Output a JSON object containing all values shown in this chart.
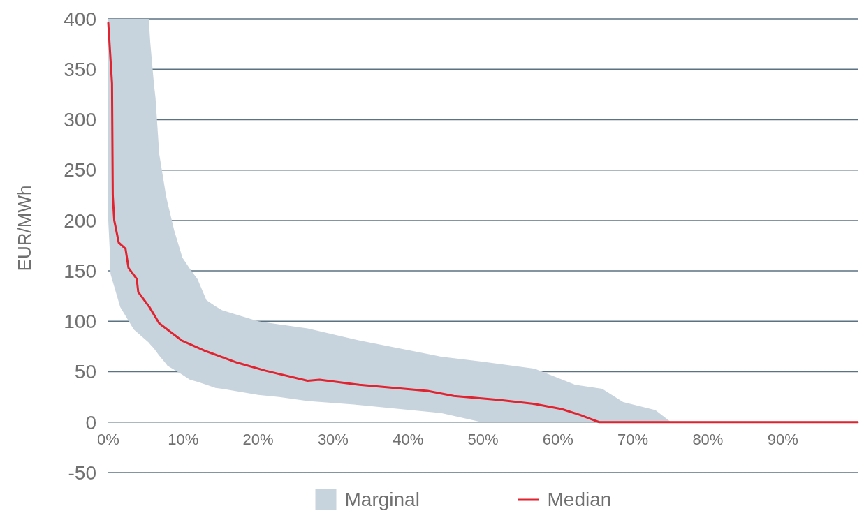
{
  "chart_data": {
    "type": "line",
    "ylabel": "EUR/MWh",
    "xlim": [
      0,
      100
    ],
    "xticks": [
      {
        "value": 0,
        "label": "0%"
      },
      {
        "value": 10,
        "label": "10%"
      },
      {
        "value": 20,
        "label": "20%"
      },
      {
        "value": 30,
        "label": "30%"
      },
      {
        "value": 40,
        "label": "40%"
      },
      {
        "value": 50,
        "label": "50%"
      },
      {
        "value": 60,
        "label": "60%"
      },
      {
        "value": 70,
        "label": "70%"
      },
      {
        "value": 80,
        "label": "80%"
      },
      {
        "value": 90,
        "label": "90%"
      }
    ],
    "ylim": [
      -50,
      400
    ],
    "yticks": [
      -50,
      0,
      50,
      100,
      150,
      200,
      250,
      300,
      350,
      400
    ],
    "grid": "y",
    "legend": "bottom",
    "series": [
      {
        "name": "Marginal",
        "type": "area",
        "color": "#c8d4dd",
        "x": [
          0,
          0.2,
          0.3,
          1.6,
          3.4,
          5.4,
          5.6,
          6.1,
          6.3,
          6.8,
          7.7,
          7.9,
          8.8,
          9.9,
          10.9,
          11.9,
          13.1,
          14.3,
          15.2,
          20,
          22.8,
          26.6,
          33.5,
          44.4,
          49.8,
          56.9,
          62.3,
          65.9,
          68.7,
          73,
          74.9,
          75,
          100
        ],
        "values": [
          null,
          null,
          null,
          null,
          null,
          null,
          null,
          null,
          null,
          null,
          null,
          null,
          null,
          null,
          null,
          null,
          null,
          null,
          null,
          null,
          null,
          null,
          null,
          null,
          null,
          null,
          null,
          null,
          null,
          null,
          null,
          null,
          null
        ],
        "upper": [
          400,
          400,
          400,
          400,
          400,
          400,
          377,
          335,
          322,
          266,
          225,
          218,
          190,
          163,
          152,
          142,
          121,
          115,
          111,
          100,
          97,
          93,
          81,
          65,
          60,
          53,
          37,
          33,
          20,
          12,
          1,
          0,
          0
        ],
        "lower": [
          200,
          170,
          147,
          114,
          92,
          79,
          77,
          73,
          71,
          66,
          58,
          56,
          52,
          47,
          42,
          40,
          37,
          34,
          33,
          27,
          25,
          21,
          17,
          9,
          0,
          0,
          0,
          0,
          0,
          0,
          0,
          0,
          0
        ]
      },
      {
        "name": "Median",
        "color": "#e0232e",
        "x": [
          0,
          0.5,
          0.6,
          0.8,
          1.4,
          2.3,
          2.7,
          3.8,
          4.0,
          5.5,
          6.8,
          9.8,
          12.8,
          17.2,
          21.0,
          26.6,
          28.2,
          33.5,
          42.6,
          46.1,
          52.2,
          56.9,
          60.5,
          63.0,
          64.4,
          65.5,
          100
        ],
        "values": [
          396,
          336,
          225,
          200,
          178,
          172,
          153,
          142,
          129,
          114,
          98,
          81,
          71,
          59,
          51,
          41,
          42,
          37,
          31,
          26,
          22,
          18,
          13,
          7,
          3,
          0,
          0
        ]
      }
    ]
  }
}
